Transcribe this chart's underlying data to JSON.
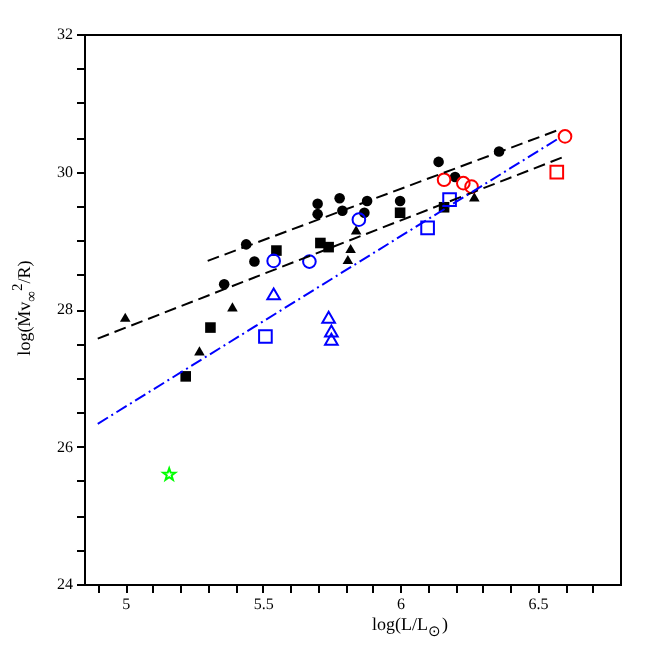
{
  "chart_data": {
    "type": "scatter",
    "xlabel": "log(L/L$_{⊙}$)",
    "ylabel": "log(Ṁv$_{∞}$$^{2}$/R)",
    "xlim": [
      4.85,
      6.8
    ],
    "ylim": [
      24,
      32
    ],
    "xticks": [
      {
        "value": 4.9,
        "label": null
      },
      5,
      {
        "value": 5.1,
        "label": null
      },
      {
        "value": 5.2,
        "label": null
      },
      {
        "value": 5.3,
        "label": null
      },
      {
        "value": 5.4,
        "label": null
      },
      5.5,
      {
        "value": 5.6,
        "label": null
      },
      {
        "value": 5.7,
        "label": null
      },
      {
        "value": 5.8,
        "label": null
      },
      {
        "value": 5.9,
        "label": null
      },
      6,
      {
        "value": 6.1,
        "label": null
      },
      {
        "value": 6.2,
        "label": null
      },
      {
        "value": 6.3,
        "label": null
      },
      {
        "value": 6.4,
        "label": null
      },
      6.5,
      {
        "value": 6.6,
        "label": null
      },
      {
        "value": 6.7,
        "label": null
      }
    ],
    "yticks": [
      24,
      {
        "value": 24.5,
        "label": null
      },
      {
        "value": 25,
        "label": null
      },
      {
        "value": 25.5,
        "label": null
      },
      26,
      {
        "value": 26.5,
        "label": null
      },
      {
        "value": 27,
        "label": null
      },
      {
        "value": 27.5,
        "label": null
      },
      28,
      {
        "value": 28.5,
        "label": null
      },
      {
        "value": 29,
        "label": null
      },
      {
        "value": 29.5,
        "label": null
      },
      30,
      {
        "value": 30.5,
        "label": null
      },
      {
        "value": 31,
        "label": null
      },
      {
        "value": 31.5,
        "label": null
      },
      32
    ],
    "grid": false,
    "series": [
      {
        "marker": "circle",
        "color": "#000000",
        "x": [
          5.44,
          5.47,
          5.36,
          5.7,
          5.7,
          5.78,
          5.79,
          5.88,
          5.87,
          6.0,
          6.14,
          6.2,
          6.36
        ],
        "values": [
          28.94,
          28.69,
          28.36,
          29.53,
          29.38,
          29.61,
          29.43,
          29.57,
          29.4,
          29.57,
          30.14,
          29.92,
          30.29
        ]
      },
      {
        "marker": "square",
        "color": "#000000",
        "x": [
          5.71,
          5.74,
          5.55,
          6.0,
          6.16,
          5.31,
          5.22
        ],
        "values": [
          28.96,
          28.9,
          28.85,
          29.4,
          29.48,
          27.73,
          27.02
        ]
      },
      {
        "marker": "triangle",
        "color": "#000000",
        "x": [
          5.0,
          5.39,
          5.27,
          5.84,
          5.82,
          5.81,
          6.27
        ],
        "values": [
          27.88,
          28.03,
          27.39,
          29.15,
          28.88,
          28.72,
          29.63
        ]
      },
      {
        "marker": "circle",
        "color": "#0000ff",
        "x": [
          5.54,
          5.67,
          5.85
        ],
        "values": [
          28.7,
          28.69,
          29.3
        ]
      },
      {
        "marker": "square",
        "color": "#0000ff",
        "x": [
          6.1,
          6.18,
          5.51
        ],
        "values": [
          29.18,
          29.59,
          27.6
        ]
      },
      {
        "marker": "triangle",
        "color": "#0000ff",
        "x": [
          5.54,
          5.74,
          5.75,
          5.75
        ],
        "values": [
          28.22,
          27.88,
          27.68,
          27.56
        ]
      },
      {
        "marker": "circle",
        "color": "#ff0000",
        "x": [
          6.16,
          6.23,
          6.26,
          6.6
        ],
        "values": [
          29.88,
          29.83,
          29.78,
          30.51
        ]
      },
      {
        "marker": "square",
        "color": "#ff0000",
        "x": [
          6.57
        ],
        "values": [
          29.99
        ]
      },
      {
        "marker": "star",
        "color": "#00ff00",
        "x": [
          5.16
        ],
        "values": [
          25.59
        ]
      },
      {
        "type": "line",
        "line_style": "dashed",
        "color": "#000000",
        "x": [
          5.3,
          6.58
        ],
        "values": [
          28.7,
          30.61
        ]
      },
      {
        "type": "line",
        "line_style": "dashed",
        "color": "#000000",
        "x": [
          4.9,
          6.6
        ],
        "values": [
          27.57,
          30.22
        ]
      },
      {
        "type": "line",
        "line_style": "dotted",
        "color": "#0000ff",
        "x": [
          4.9,
          6.58
        ],
        "values": [
          26.33,
          30.49
        ]
      }
    ]
  }
}
